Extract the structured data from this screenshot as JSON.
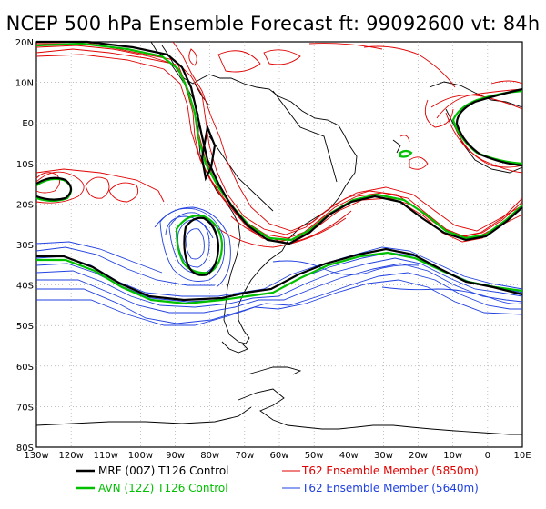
{
  "title": "NCEP 500 hPa Ensemble Forecast   ft: 99092600  vt: 84h",
  "lat_labels": [
    "20N",
    "10N",
    "E0",
    "10S",
    "20S",
    "30S",
    "40S",
    "50S",
    "60S",
    "70S",
    "80S"
  ],
  "lon_labels": [
    "130w",
    "120w",
    "110w",
    "100w",
    "90w",
    "80w",
    "70w",
    "60w",
    "50w",
    "40w",
    "30w",
    "20w",
    "10w",
    "0",
    "10E"
  ],
  "legend": [
    {
      "text": "MRF (00Z) T126 Control",
      "color": "#000000"
    },
    {
      "text": "AVN (12Z) T126 Control",
      "color": "#00c000"
    },
    {
      "text": "T62 Ensemble Member (5850m)",
      "color": "#e00000"
    },
    {
      "text": "T62 Ensemble Member (5640m)",
      "color": "#2040e0"
    }
  ],
  "colors": {
    "mrf": "#000000",
    "avn": "#00c000",
    "red": "#e00000",
    "blue": "#2040e0",
    "grid": "#9a9a9a"
  }
}
